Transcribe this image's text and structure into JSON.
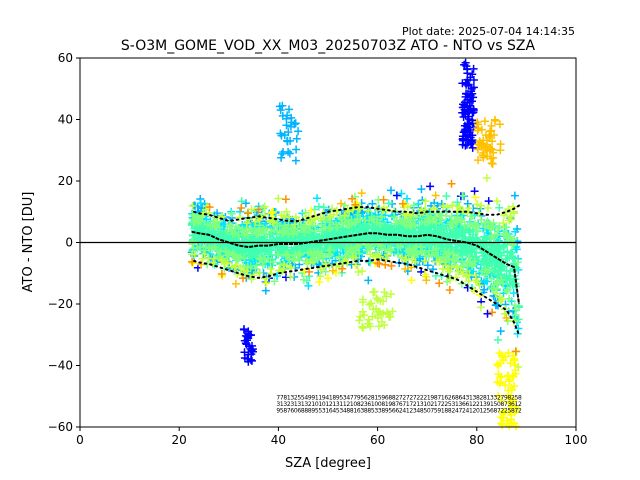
{
  "chart_data": {
    "type": "scatter",
    "title": "S-O3M_GOME_VOD_XX_M03_20250703Z ATO - NTO vs SZA",
    "plot_date": "Plot date: 2025-07-04 14:14:35",
    "xlabel": "SZA [degree]",
    "ylabel": "ATO - NTO [DU]",
    "xlim": [
      0,
      100
    ],
    "ylim": [
      -60,
      60
    ],
    "x_ticks": [
      "0",
      "20",
      "40",
      "60",
      "80",
      "100"
    ],
    "y_ticks": [
      "60",
      "40",
      "20",
      "0",
      "−20",
      "−40",
      "−60"
    ],
    "grid": false,
    "marker": "plus",
    "point_colors_by_density": [
      "#0000ff",
      "#00b4ff",
      "#00e5ff",
      "#40ffb0",
      "#7fff7f",
      "#c0ff40",
      "#ffff00",
      "#ffc000",
      "#ff9000"
    ],
    "zero_line": 0,
    "median": {
      "x": [
        22.5,
        24,
        26,
        28,
        30,
        32,
        34,
        36,
        38,
        40,
        42,
        44,
        46,
        48,
        50,
        52,
        54,
        56,
        58,
        60,
        62,
        64,
        66,
        68,
        70,
        72,
        74,
        76,
        78,
        80,
        82,
        84,
        86,
        87.5,
        88.5
      ],
      "y": [
        3.5,
        3,
        2.5,
        1,
        0,
        -1,
        -1.5,
        -1,
        -1,
        -0.5,
        -0.5,
        -0.5,
        0,
        0.5,
        1,
        1.5,
        2,
        2.5,
        3,
        3,
        2.5,
        2.5,
        2,
        2,
        2.5,
        2,
        1,
        0.5,
        0,
        -1,
        -3,
        -5,
        -7,
        -8,
        -20
      ]
    },
    "upper_band": {
      "x": [
        23,
        24,
        26,
        28,
        30,
        32,
        34,
        36,
        38,
        40,
        42,
        44,
        46,
        48,
        50,
        52,
        54,
        56,
        58,
        60,
        62,
        64,
        66,
        68,
        70,
        72,
        74,
        76,
        78,
        80,
        82,
        84,
        86,
        87.5,
        88.5
      ],
      "y": [
        10,
        9.5,
        9,
        8,
        7,
        7.5,
        8,
        8.5,
        8,
        7.5,
        7,
        7,
        8,
        9,
        10,
        10.5,
        11,
        11.5,
        11.5,
        11,
        10.5,
        10,
        10,
        9.5,
        10,
        10,
        10,
        10,
        10,
        9.5,
        9,
        9,
        10,
        11,
        12
      ]
    },
    "lower_band": {
      "x": [
        23,
        24,
        26,
        28,
        30,
        32,
        34,
        36,
        38,
        40,
        42,
        44,
        46,
        48,
        50,
        52,
        54,
        56,
        58,
        60,
        62,
        64,
        66,
        68,
        70,
        72,
        74,
        76,
        78,
        80,
        82,
        84,
        86,
        87.5,
        88.5
      ],
      "y": [
        -6,
        -6.5,
        -7,
        -8,
        -9,
        -10,
        -11,
        -11.5,
        -11,
        -10,
        -9.5,
        -9,
        -8.5,
        -8,
        -7.5,
        -7,
        -6.5,
        -6,
        -6,
        -5.5,
        -6,
        -6.5,
        -7,
        -8,
        -9,
        -10,
        -11,
        -12,
        -14,
        -16,
        -18,
        -20,
        -22,
        -26,
        -30
      ]
    },
    "count_row_y": -51,
    "count_label_columns": [
      [
        "7",
        "3",
        "9"
      ],
      [
        "7",
        "1",
        "5"
      ],
      [
        "8",
        "3",
        "8"
      ],
      [
        "1",
        "2",
        "7"
      ],
      [
        "3",
        "3",
        "6"
      ],
      [
        "2",
        "1",
        "0"
      ],
      [
        "5",
        "3",
        "6"
      ],
      [
        "5",
        "1",
        "8"
      ],
      [
        "4",
        "3",
        "8"
      ],
      [
        "9",
        "2",
        "8"
      ],
      [
        "9",
        "1",
        "9"
      ],
      [
        "1",
        "0",
        "5"
      ],
      [
        "1",
        "1",
        "5"
      ],
      [
        "9",
        "0",
        "3"
      ],
      [
        "4",
        "1",
        "1"
      ],
      [
        "1",
        "2",
        "6"
      ],
      [
        "8",
        "1",
        "4"
      ],
      [
        "9",
        "3",
        "5"
      ],
      [
        "5",
        "1",
        "3"
      ],
      [
        "3",
        "1",
        "4"
      ],
      [
        "4",
        "2",
        "8"
      ],
      [
        "7",
        "1",
        "8"
      ],
      [
        "7",
        "0",
        "1"
      ],
      [
        "9",
        "8",
        "6"
      ],
      [
        "5",
        "2",
        "3"
      ],
      [
        "6",
        "3",
        "8"
      ],
      [
        "2",
        "6",
        "8"
      ],
      [
        "8",
        "1",
        "5"
      ],
      [
        "1",
        "0",
        "3"
      ],
      [
        "5",
        "0",
        "3"
      ],
      [
        "9",
        "8",
        "8"
      ],
      [
        "6",
        "1",
        "9"
      ],
      [
        "8",
        "9",
        "5"
      ],
      [
        "8",
        "8",
        "6"
      ],
      [
        "2",
        "7",
        "6"
      ],
      [
        "7",
        "6",
        "2"
      ],
      [
        "2",
        "7",
        "4"
      ],
      [
        "7",
        "1",
        "1"
      ],
      [
        "2",
        "7",
        "2"
      ],
      [
        "7",
        "2",
        "3"
      ],
      [
        "2",
        "1",
        "4"
      ],
      [
        "2",
        "3",
        "8"
      ],
      [
        "2",
        "1",
        "5"
      ],
      [
        "1",
        "0",
        "0"
      ],
      [
        "9",
        "2",
        "7"
      ],
      [
        "8",
        "1",
        "5"
      ],
      [
        "7",
        "7",
        "9"
      ],
      [
        "1",
        "2",
        "1"
      ],
      [
        "6",
        "2",
        "8"
      ],
      [
        "2",
        "5",
        "8"
      ],
      [
        "6",
        "3",
        "2"
      ],
      [
        "8",
        "1",
        "4"
      ],
      [
        "6",
        "3",
        "7"
      ],
      [
        "4",
        "6",
        "2"
      ],
      [
        "3",
        "6",
        "4"
      ],
      [
        "1",
        "1",
        "1"
      ],
      [
        "3",
        "2",
        "2"
      ],
      [
        "8",
        "2",
        "0"
      ],
      [
        "2",
        "1",
        "1"
      ],
      [
        "8",
        "3",
        "2"
      ],
      [
        "1",
        "9",
        "5"
      ],
      [
        "3",
        "1",
        "6"
      ],
      [
        "3",
        "5",
        "8"
      ],
      [
        "2",
        "0",
        "7"
      ],
      [
        "7",
        "8",
        "2"
      ],
      [
        "9",
        "7",
        "2"
      ],
      [
        "8",
        "3",
        "5"
      ],
      [
        "2",
        "6",
        "8"
      ],
      [
        "5",
        "1",
        "7"
      ],
      [
        "8",
        "2",
        "2"
      ]
    ]
  }
}
